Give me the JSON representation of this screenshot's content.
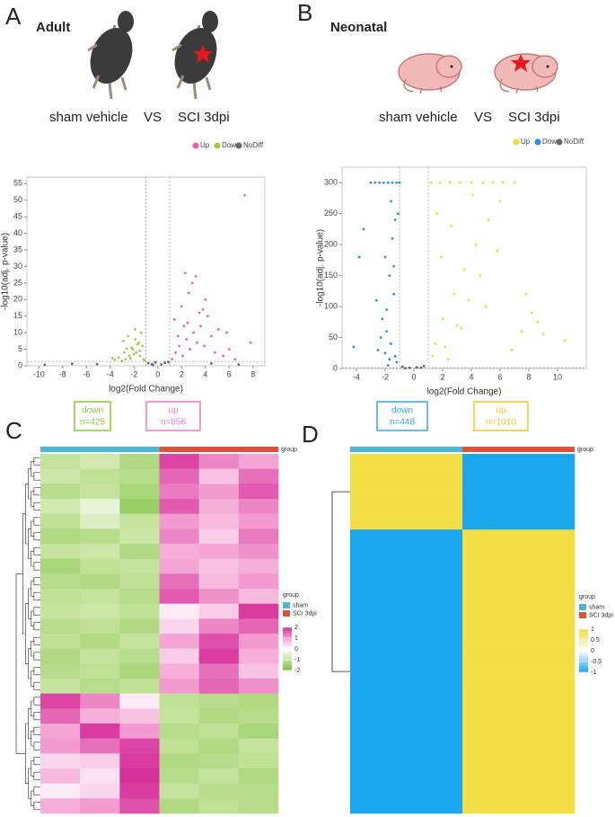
{
  "panels": [
    {
      "letter": "A",
      "title": "Adult",
      "comparison": [
        "sham vehicle",
        "VS",
        "SCI  3dpi"
      ]
    },
    {
      "letter": "B",
      "title": "Neonatal",
      "comparison": [
        "sham vehicle",
        "VS",
        "SCI  3dpi"
      ]
    },
    {
      "letter": "C"
    },
    {
      "letter": "D"
    }
  ],
  "chart_data": [
    {
      "type": "scatter",
      "xlabel": "log2(Fold Change)",
      "ylabel": "-log10(adj. p-value)",
      "xlim": [
        -11,
        9
      ],
      "xticks": [
        -10,
        -8,
        -6,
        -4,
        -2,
        0,
        2,
        4,
        6,
        8
      ],
      "ylim": [
        0,
        57
      ],
      "yticks": [
        0,
        5,
        10,
        15,
        20,
        25,
        30,
        35,
        40,
        45,
        50,
        55
      ],
      "thresholds": {
        "x": [
          -1,
          1
        ],
        "y": 1.3
      },
      "series": [
        {
          "name": "Up",
          "color": "#e85fb7",
          "x": [
            1.2,
            1.5,
            1.8,
            2.1,
            2.4,
            2.7,
            3.0,
            3.3,
            3.6,
            3.9,
            4.2,
            4.5,
            4.8,
            5.1,
            5.5,
            6.0,
            6.5,
            1.4,
            2.0,
            2.6,
            3.2,
            2.3,
            2.9,
            3.5,
            4.0,
            2.2,
            3.8,
            5.8,
            7.3,
            7.8,
            1.7,
            2.5
          ],
          "values": [
            2,
            4,
            6,
            3,
            8,
            5,
            10,
            7,
            12,
            6,
            15,
            9,
            4,
            11,
            3,
            5,
            2,
            14,
            18,
            22,
            27,
            28,
            25,
            16,
            20,
            12,
            17,
            10,
            51.5,
            7,
            9,
            13
          ]
        },
        {
          "name": "Down",
          "color": "#9bcd4b",
          "x": [
            -1.2,
            -1.5,
            -1.8,
            -2.1,
            -2.4,
            -2.7,
            -3.0,
            -3.3,
            -3.6,
            -1.3,
            -1.6,
            -1.9,
            -2.2,
            -2.5,
            -2.8,
            -1.4,
            -1.7,
            -2.0,
            -2.3,
            -1.1,
            -3.8,
            -2.6,
            -1.9,
            -1.5,
            -2.9
          ],
          "values": [
            2,
            3,
            4,
            5,
            3,
            2,
            1.5,
            2.5,
            1.8,
            6,
            7,
            8,
            5.5,
            9,
            4,
            10,
            6.5,
            3.5,
            2.2,
            1.6,
            2.3,
            5.2,
            11,
            4.5,
            7.5
          ]
        },
        {
          "name": "NoDiff",
          "color": "#666666",
          "x": [
            -0.8,
            -0.5,
            -0.2,
            0.3,
            0.6,
            0.9,
            -9.5,
            -7.2,
            -5.1,
            4.5,
            6.8,
            -0.4
          ],
          "values": [
            0.8,
            0.5,
            1.0,
            0.4,
            0.9,
            1.1,
            0.3,
            0.6,
            0.5,
            0.7,
            0.4,
            0.2
          ]
        }
      ],
      "count_boxes": [
        {
          "label": "down",
          "count": "n=425",
          "color": "#8cc63f"
        },
        {
          "label": "up",
          "count": "n=856",
          "color": "#ee7bbf"
        }
      ]
    },
    {
      "type": "scatter",
      "xlabel": "log2(Fold Change)",
      "ylabel": "-log10(adj. p-value)",
      "xlim": [
        -5,
        12
      ],
      "xticks": [
        -4,
        -2,
        0,
        2,
        4,
        6,
        8,
        10
      ],
      "ylim": [
        0,
        325
      ],
      "yticks": [
        0,
        50,
        100,
        150,
        200,
        250,
        300
      ],
      "thresholds": {
        "x": [
          -1,
          1
        ],
        "y": 1.3
      },
      "series": [
        {
          "name": "Up",
          "color": "#f3d92a",
          "x": [
            1.2,
            1.8,
            2.5,
            3.2,
            4.0,
            4.8,
            5.5,
            6.2,
            7.0,
            1.5,
            2.0,
            2.8,
            3.5,
            4.3,
            5.2,
            6.0,
            7.5,
            8.2,
            9.0,
            10.5,
            1.3,
            2.2,
            3.0,
            3.8,
            4.6,
            5.8,
            6.8,
            1.6,
            2.6,
            4.1,
            5.0,
            3.3,
            2.4,
            1.9,
            8.6,
            7.8
          ],
          "values": [
            300,
            300,
            300,
            300,
            300,
            300,
            300,
            300,
            300,
            40,
            80,
            120,
            160,
            200,
            240,
            270,
            60,
            90,
            55,
            45,
            20,
            35,
            70,
            110,
            150,
            190,
            30,
            250,
            230,
            280,
            100,
            65,
            15,
            180,
            75,
            120
          ]
        },
        {
          "name": "Down",
          "color": "#2a8fe0",
          "x": [
            -1.2,
            -1.5,
            -1.8,
            -2.1,
            -2.4,
            -2.7,
            -3.0,
            -1.3,
            -1.6,
            -1.9,
            -2.2,
            -2.5,
            -1.4,
            -1.7,
            -2.0,
            -1.1,
            -3.5,
            -4.2,
            -3.8,
            -1.5,
            -1.9,
            -1.6,
            -2.3,
            -1.2,
            -1.8,
            -2.6,
            -1.0,
            -1.4,
            -1.3,
            -1.7,
            -2.0
          ],
          "values": [
            300,
            300,
            300,
            300,
            300,
            300,
            300,
            20,
            40,
            60,
            80,
            30,
            120,
            150,
            180,
            250,
            225,
            35,
            180,
            210,
            95,
            270,
            50,
            10,
            5,
            110,
            300,
            165,
            240,
            15,
            25
          ]
        },
        {
          "name": "NoDiff",
          "color": "#666666",
          "x": [
            -0.8,
            -0.3,
            0.2,
            0.7,
            -0.6,
            0.5
          ],
          "values": [
            3,
            1,
            2,
            4,
            0.5,
            1.5
          ]
        }
      ],
      "count_boxes": [
        {
          "label": "down",
          "count": "n=448",
          "color": "#3aa6e6"
        },
        {
          "label": "up",
          "count": "n=1010",
          "color": "#f2c52b"
        }
      ]
    },
    {
      "type": "heatmap",
      "group_label": "group",
      "groups": [
        {
          "name": "sham",
          "color": "#4db6d0"
        },
        {
          "name": "SCI 3dpi",
          "color": "#e0503a"
        }
      ],
      "clim": [
        -2,
        2
      ],
      "cticks": [
        2,
        1,
        0,
        -1,
        -2
      ],
      "colors": [
        "#7cc242",
        "#c6e39e",
        "#ffffff",
        "#f39bd0",
        "#d6309a"
      ],
      "matrix": [
        [
          -1,
          -0.8,
          -1.3,
          1.8,
          1.2,
          0.9
        ],
        [
          -0.9,
          -1.1,
          -1.2,
          1.5,
          0.6,
          1.4
        ],
        [
          -1.2,
          -1,
          -1.4,
          1.3,
          1.0,
          1.6
        ],
        [
          -0.8,
          -0.4,
          -1.6,
          1.6,
          0.8,
          1.2
        ],
        [
          -1.1,
          -0.6,
          -1.0,
          1.0,
          0.7,
          1.0
        ],
        [
          -1.3,
          -1.2,
          -0.9,
          1.2,
          0.5,
          1.3
        ],
        [
          -1.0,
          -0.9,
          -1.3,
          0.8,
          0.9,
          1.1
        ],
        [
          -1.4,
          -1.1,
          -1.0,
          0.9,
          0.6,
          0.8
        ],
        [
          -1.2,
          -1.3,
          -1.1,
          1.4,
          0.7,
          1.0
        ],
        [
          -1.1,
          -1.0,
          -1.2,
          1.6,
          1.1,
          0.7
        ],
        [
          -1.0,
          -0.9,
          -1.1,
          0.2,
          0.5,
          1.9
        ],
        [
          -1.2,
          -1.1,
          -1.3,
          0.4,
          1.2,
          1.5
        ],
        [
          -1.1,
          -1.3,
          -1.0,
          0.9,
          1.7,
          1.0
        ],
        [
          -1.3,
          -1.0,
          -1.2,
          0.5,
          1.9,
          0.8
        ],
        [
          -1.2,
          -1.1,
          -1.4,
          0.8,
          1.4,
          0.6
        ],
        [
          -1.0,
          -1.2,
          -1.1,
          1.0,
          1.5,
          1.1
        ],
        [
          1.8,
          1.2,
          0.2,
          -1.1,
          -1.2,
          -1.3
        ],
        [
          1.5,
          0.8,
          0.6,
          -1.0,
          -1.3,
          -1.2
        ],
        [
          0.9,
          1.9,
          1.0,
          -1.2,
          -1.1,
          -1.4
        ],
        [
          1.0,
          1.4,
          1.8,
          -1.1,
          -1.3,
          -1.0
        ],
        [
          0.4,
          0.5,
          1.9,
          -1.3,
          -1.2,
          -1.1
        ],
        [
          0.7,
          0.3,
          2.0,
          -1.2,
          -1.0,
          -1.3
        ],
        [
          0.2,
          0.4,
          1.9,
          -1.0,
          -1.2,
          -1.2
        ],
        [
          0.8,
          1.0,
          1.7,
          -1.3,
          -1.1,
          -1.2
        ]
      ]
    },
    {
      "type": "heatmap",
      "group_label": "group",
      "groups": [
        {
          "name": "sham",
          "color": "#4db6d0"
        },
        {
          "name": "SCI 3dpi",
          "color": "#e0503a"
        }
      ],
      "clim": [
        -1,
        1
      ],
      "cticks": [
        1,
        0.5,
        0,
        -0.5,
        -1
      ],
      "colors": [
        "#1aa7ee",
        "#8fd2f6",
        "#ffffff",
        "#f7eb9c",
        "#f3df45"
      ],
      "matrix": [
        [
          1,
          -1
        ],
        [
          1,
          -1
        ],
        [
          1,
          -1
        ],
        [
          1,
          -1
        ],
        [
          -1,
          1
        ],
        [
          -1,
          1
        ],
        [
          -1,
          1
        ],
        [
          -1,
          1
        ],
        [
          -1,
          1
        ],
        [
          -1,
          1
        ],
        [
          -1,
          1
        ],
        [
          -1,
          1
        ],
        [
          -1,
          1
        ],
        [
          -1,
          1
        ],
        [
          -1,
          1
        ],
        [
          -1,
          1
        ],
        [
          -1,
          1
        ],
        [
          -1,
          1
        ],
        [
          -1,
          1
        ]
      ]
    }
  ]
}
